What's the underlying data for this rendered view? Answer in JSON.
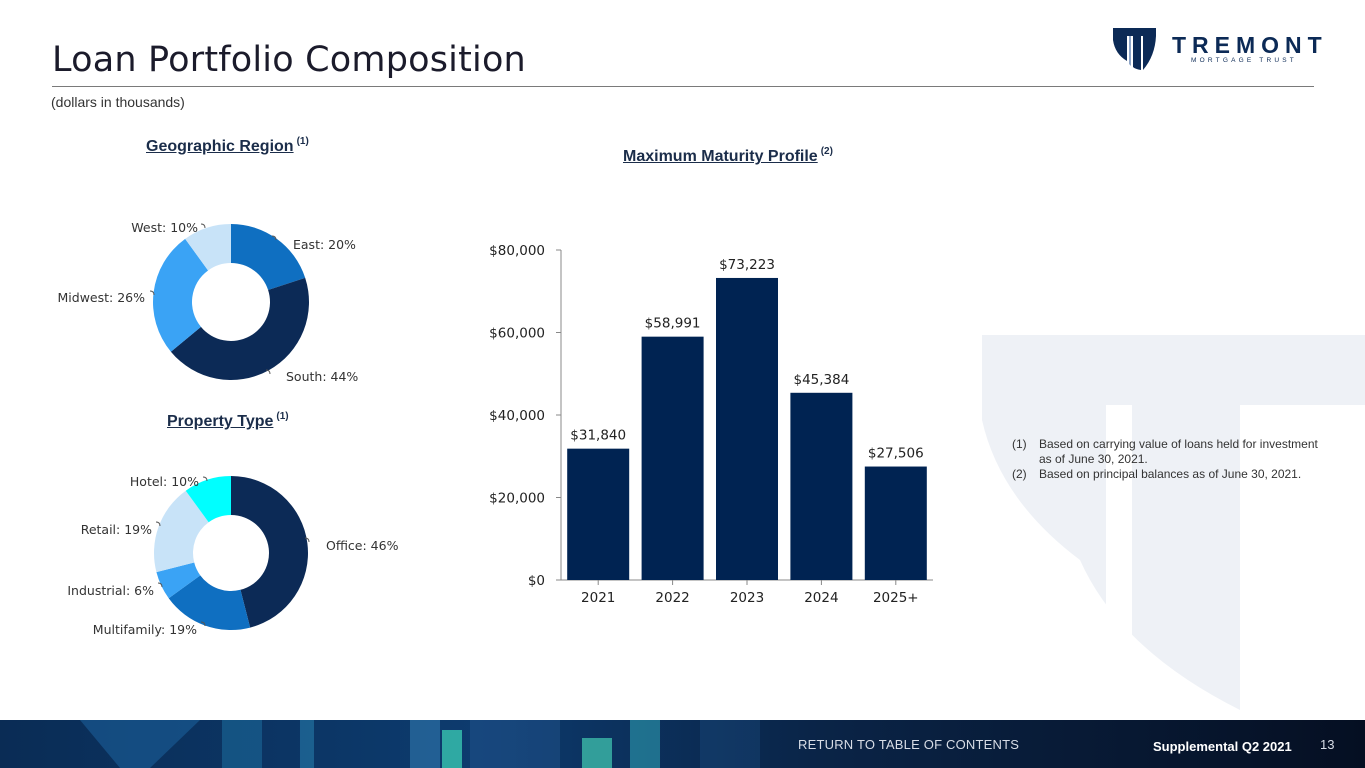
{
  "header": {
    "title": "Loan Portfolio Composition",
    "subtitle": "(dollars in thousands)",
    "logo": {
      "word": "TREMONT",
      "sub": "MORTGAGE TRUST"
    }
  },
  "geo": {
    "title": "Geographic Region",
    "sup": "(1)"
  },
  "property": {
    "title": "Property Type",
    "sup": "(1)"
  },
  "maturity": {
    "title": "Maximum Maturity Profile",
    "sup": "(2)"
  },
  "chart_data": [
    {
      "type": "pie",
      "title": "Geographic Region",
      "donut": true,
      "slices": [
        {
          "label": "East",
          "value": 20,
          "display": "East: 20%",
          "color": "#0f6fc1"
        },
        {
          "label": "South",
          "value": 44,
          "display": "South: 44%",
          "color": "#0c2a56"
        },
        {
          "label": "Midwest",
          "value": 26,
          "display": "Midwest: 26%",
          "color": "#3aa3f5"
        },
        {
          "label": "West",
          "value": 10,
          "display": "West: 10%",
          "color": "#c8e3f8"
        }
      ]
    },
    {
      "type": "pie",
      "title": "Property Type",
      "donut": true,
      "slices": [
        {
          "label": "Office",
          "value": 46,
          "display": "Office: 46%",
          "color": "#0c2a56"
        },
        {
          "label": "Multifamily",
          "value": 19,
          "display": "Multifamily: 19%",
          "color": "#0f6fc1"
        },
        {
          "label": "Industrial",
          "value": 6,
          "display": "Industrial: 6%",
          "color": "#3aa3f5"
        },
        {
          "label": "Retail",
          "value": 19,
          "display": "Retail: 19%",
          "color": "#c8e3f8"
        },
        {
          "label": "Hotel",
          "value": 10,
          "display": "Hotel: 10%",
          "color": "#00ffff"
        }
      ]
    },
    {
      "type": "bar",
      "title": "Maximum Maturity Profile",
      "categories": [
        "2021",
        "2022",
        "2023",
        "2024",
        "2025+"
      ],
      "values": [
        31840,
        58991,
        73223,
        45384,
        27506
      ],
      "data_labels": [
        "$31,840",
        "$58,991",
        "$73,223",
        "$45,384",
        "$27,506"
      ],
      "yticks": [
        "$0",
        "$20,000",
        "$40,000",
        "$60,000",
        "$80,000"
      ],
      "ylim": [
        0,
        80000
      ],
      "color": "#002352"
    }
  ],
  "footnotes": [
    {
      "num": "(1)",
      "text": "Based on carrying value of loans held for investment as of June 30, 2021."
    },
    {
      "num": "(2)",
      "text": "Based on principal balances as of June 30, 2021."
    }
  ],
  "footer": {
    "link": "RETURN TO TABLE OF CONTENTS",
    "label": "Supplemental Q2 2021",
    "page": "13"
  }
}
